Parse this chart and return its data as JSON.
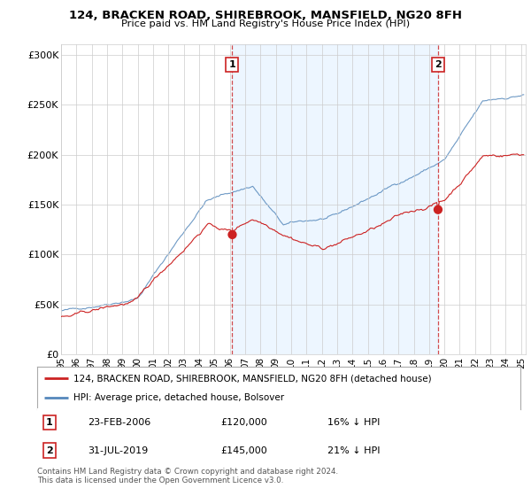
{
  "title": "124, BRACKEN ROAD, SHIREBROOK, MANSFIELD, NG20 8FH",
  "subtitle": "Price paid vs. HM Land Registry's House Price Index (HPI)",
  "ylabel_ticks": [
    "£0",
    "£50K",
    "£100K",
    "£150K",
    "£200K",
    "£250K",
    "£300K"
  ],
  "ytick_values": [
    0,
    50000,
    100000,
    150000,
    200000,
    250000,
    300000
  ],
  "ylim": [
    0,
    310000
  ],
  "xlim_start": 1995.0,
  "xlim_end": 2025.3,
  "xticks": [
    1995,
    1996,
    1997,
    1998,
    1999,
    2000,
    2001,
    2002,
    2003,
    2004,
    2005,
    2006,
    2007,
    2008,
    2009,
    2010,
    2011,
    2012,
    2013,
    2014,
    2015,
    2016,
    2017,
    2018,
    2019,
    2020,
    2021,
    2022,
    2023,
    2024,
    2025
  ],
  "hpi_color": "#5588bb",
  "hpi_alpha": 0.85,
  "price_color": "#cc2222",
  "vline_color": "#cc2222",
  "shade_color": "#ddeeff",
  "shade_alpha": 0.5,
  "legend_label_red": "124, BRACKEN ROAD, SHIREBROOK, MANSFIELD, NG20 8FH (detached house)",
  "legend_label_blue": "HPI: Average price, detached house, Bolsover",
  "transaction1_date": "23-FEB-2006",
  "transaction1_price": "£120,000",
  "transaction1_hpi": "16% ↓ HPI",
  "transaction1_year": 2006.13,
  "transaction1_price_val": 120000,
  "transaction2_date": "31-JUL-2019",
  "transaction2_price": "£145,000",
  "transaction2_hpi": "21% ↓ HPI",
  "transaction2_year": 2019.58,
  "transaction2_price_val": 145000,
  "footer": "Contains HM Land Registry data © Crown copyright and database right 2024.\nThis data is licensed under the Open Government Licence v3.0.",
  "bg_color": "#ffffff",
  "grid_color": "#cccccc",
  "noise_seed": 42
}
